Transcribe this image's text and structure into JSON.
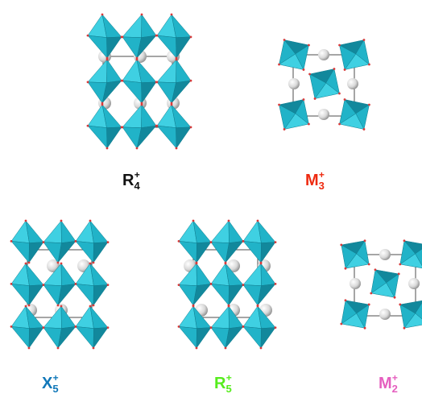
{
  "colors": {
    "octa_light": "#3fd0e2",
    "octa_mid": "#21b3c8",
    "octa_dark": "#12889c",
    "atom": "#d9d9d9",
    "atom_shadow": "#8f8f8f",
    "vertex": "#d83a3a",
    "cell_line": "#222222"
  },
  "panels": [
    {
      "id": "R4",
      "symbol": "R",
      "sub": "4",
      "sup": "+",
      "color": "#111111"
    },
    {
      "id": "M3",
      "symbol": "M",
      "sub": "3",
      "sup": "+",
      "color": "#ee2a10"
    },
    {
      "id": "X5",
      "symbol": "X",
      "sub": "5",
      "sup": "+",
      "color": "#1178b9"
    },
    {
      "id": "R5",
      "symbol": "R",
      "sub": "5",
      "sup": "+",
      "color": "#56ec1d"
    },
    {
      "id": "M2",
      "symbol": "M",
      "sub": "2",
      "sup": "+",
      "color": "#e55fbf"
    }
  ]
}
